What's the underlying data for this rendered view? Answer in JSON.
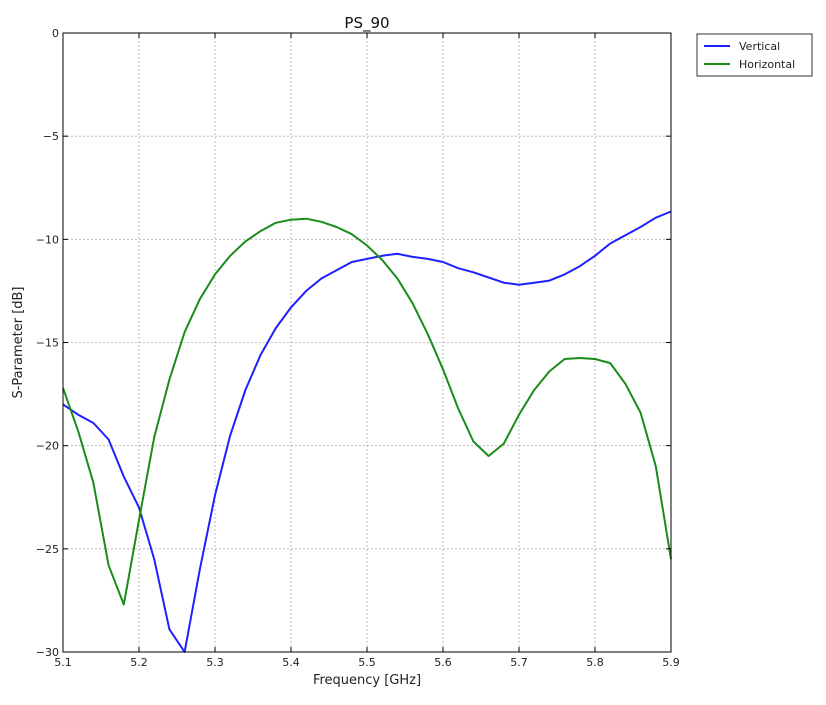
{
  "chart_data": {
    "type": "line",
    "title": "PS_90",
    "xlabel": "Frequency [GHz]",
    "ylabel": "S-Parameter [dB]",
    "xlim": [
      5.1,
      5.9
    ],
    "ylim": [
      -30,
      0
    ],
    "xticks": [
      "5.1",
      "5.2",
      "5.3",
      "5.4",
      "5.5",
      "5.6",
      "5.7",
      "5.8",
      "5.9"
    ],
    "yticks": [
      "0",
      "−5",
      "−10",
      "−15",
      "−20",
      "−25",
      "−30"
    ],
    "grid": true,
    "legend_position": "outside-top-right",
    "x": [
      5.1,
      5.12,
      5.14,
      5.16,
      5.18,
      5.2,
      5.22,
      5.24,
      5.26,
      5.28,
      5.3,
      5.32,
      5.34,
      5.36,
      5.38,
      5.4,
      5.42,
      5.44,
      5.46,
      5.48,
      5.5,
      5.52,
      5.54,
      5.56,
      5.58,
      5.6,
      5.62,
      5.64,
      5.66,
      5.68,
      5.7,
      5.72,
      5.74,
      5.76,
      5.78,
      5.8,
      5.82,
      5.84,
      5.86,
      5.88,
      5.9
    ],
    "series": [
      {
        "name": "Vertical",
        "color": "#1f1fff",
        "values": [
          -18.0,
          -18.5,
          -18.9,
          -19.7,
          -21.5,
          -23.0,
          -25.5,
          -28.9,
          -30.0,
          -26.0,
          -22.4,
          -19.5,
          -17.3,
          -15.6,
          -14.3,
          -13.3,
          -12.5,
          -11.9,
          -11.5,
          -11.1,
          -10.95,
          -10.8,
          -10.7,
          -10.85,
          -10.95,
          -11.1,
          -11.4,
          -11.6,
          -11.85,
          -12.1,
          -12.2,
          -12.1,
          -12.0,
          -11.7,
          -11.3,
          -10.8,
          -10.2,
          -9.8,
          -9.4,
          -8.95,
          -8.65
        ]
      },
      {
        "name": "Horizontal",
        "color": "#1a8c1a",
        "values": [
          -17.2,
          -19.3,
          -21.8,
          -25.8,
          -27.7,
          -23.6,
          -19.6,
          -16.8,
          -14.5,
          -12.9,
          -11.7,
          -10.8,
          -10.1,
          -9.6,
          -9.2,
          -9.05,
          -9.0,
          -9.15,
          -9.4,
          -9.75,
          -10.3,
          -11.0,
          -11.9,
          -13.1,
          -14.6,
          -16.3,
          -18.2,
          -19.8,
          -20.5,
          -19.9,
          -18.5,
          -17.3,
          -16.4,
          -15.8,
          -15.75,
          -15.8,
          -16.0,
          -17.0,
          -18.4,
          -21.0,
          -25.5
        ]
      }
    ]
  }
}
